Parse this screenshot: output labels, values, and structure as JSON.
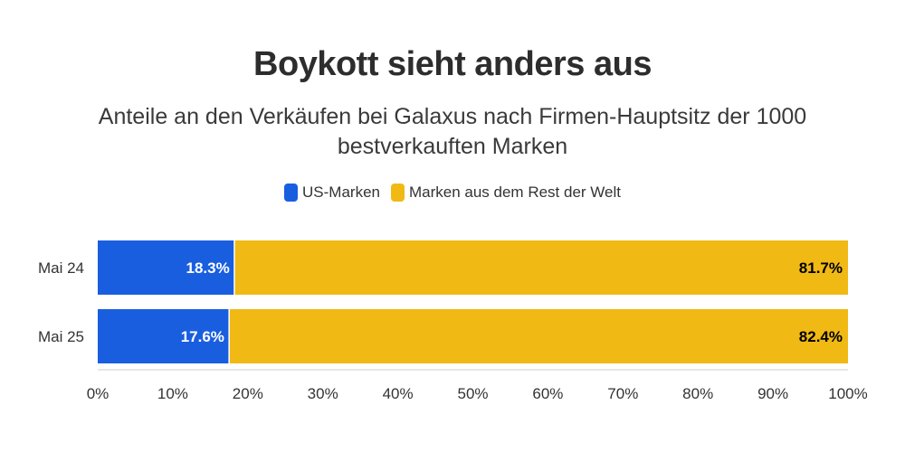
{
  "chart_data": {
    "type": "bar",
    "orientation": "horizontal",
    "stacked": true,
    "title": "Boykott sieht anders aus",
    "subtitle": "Anteile an den Verkäufen bei Galaxus nach Firmen-Hauptsitz der 1000 bestverkauften Marken",
    "categories": [
      "Mai 24",
      "Mai 25"
    ],
    "series": [
      {
        "name": "US-Marken",
        "color": "#1a5ee0",
        "label_color": "#ffffff",
        "values": [
          18.3,
          17.6
        ],
        "labels": [
          "18.3%",
          "17.6%"
        ]
      },
      {
        "name": "Marken aus dem Rest der Welt",
        "color": "#f0b914",
        "label_color": "#000000",
        "values": [
          81.7,
          82.4
        ],
        "labels": [
          "81.7%",
          "82.4%"
        ]
      }
    ],
    "xlim": [
      0,
      100
    ],
    "x_ticks": [
      "0%",
      "10%",
      "20%",
      "30%",
      "40%",
      "50%",
      "60%",
      "70%",
      "80%",
      "90%",
      "100%"
    ],
    "legend_position": "top-center",
    "grid": false
  }
}
